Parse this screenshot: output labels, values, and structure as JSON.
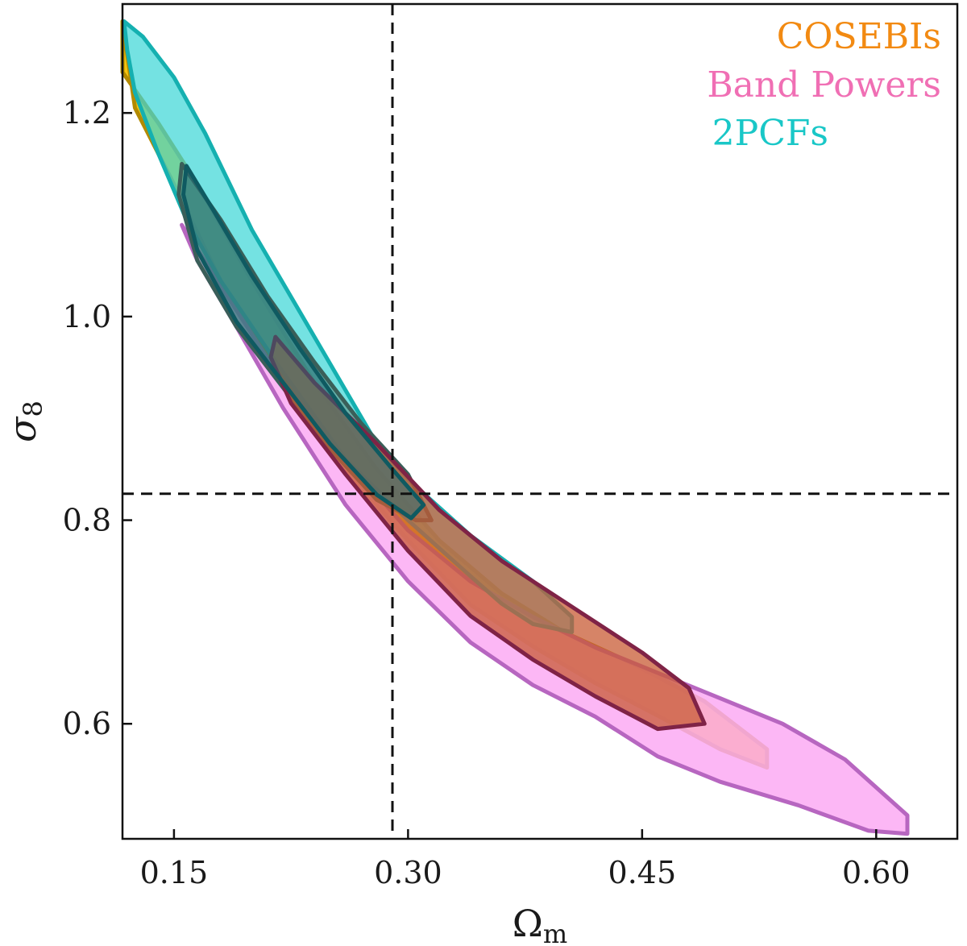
{
  "chart_data": {
    "type": "contour",
    "title": "",
    "xlabel_main": "Ω",
    "xlabel_sub": "m",
    "ylabel_main": "σ",
    "ylabel_sub": "8",
    "xlim": [
      0.117,
      0.652
    ],
    "ylim": [
      0.487,
      1.307
    ],
    "xticks": [
      0.15,
      0.3,
      0.45,
      0.6
    ],
    "xtick_labels": [
      "0.15",
      "0.30",
      "0.45",
      "0.60"
    ],
    "yticks": [
      0.6,
      0.8,
      1.0,
      1.2
    ],
    "ytick_labels": [
      "0.6",
      "0.8",
      "1.0",
      "1.2"
    ],
    "reference_lines": {
      "omega_m": 0.29,
      "sigma_8": 0.826
    },
    "legend": [
      {
        "label": "COSEBIs",
        "color": "#f28a12"
      },
      {
        "label": "Band Powers",
        "color": "#f06fb4"
      },
      {
        "label": "2PCFs",
        "color": "#19c7c7"
      }
    ],
    "series": [
      {
        "name": "COSEBIs",
        "fill": "#f5c100",
        "fill_opacity": 0.95,
        "stroke": "#b38a00",
        "fill_inner": "#5d8f84",
        "fill_inner_opacity": 0.6,
        "stroke_inner": "#3a5f59",
        "outer": [
          [
            0.117,
            1.24
          ],
          [
            0.14,
            1.19
          ],
          [
            0.165,
            1.13
          ],
          [
            0.2,
            1.035
          ],
          [
            0.24,
            0.935
          ],
          [
            0.28,
            0.85
          ],
          [
            0.32,
            0.78
          ],
          [
            0.36,
            0.728
          ],
          [
            0.4,
            0.69
          ],
          [
            0.44,
            0.662
          ],
          [
            0.49,
            0.622
          ],
          [
            0.53,
            0.575
          ],
          [
            0.53,
            0.557
          ],
          [
            0.5,
            0.575
          ],
          [
            0.46,
            0.608
          ],
          [
            0.42,
            0.64
          ],
          [
            0.38,
            0.676
          ],
          [
            0.34,
            0.717
          ],
          [
            0.3,
            0.78
          ],
          [
            0.26,
            0.85
          ],
          [
            0.22,
            0.94
          ],
          [
            0.18,
            1.035
          ],
          [
            0.15,
            1.13
          ],
          [
            0.125,
            1.205
          ],
          [
            0.117,
            1.29
          ]
        ],
        "inner": [
          [
            0.155,
            1.15
          ],
          [
            0.18,
            1.095
          ],
          [
            0.21,
            1.02
          ],
          [
            0.24,
            0.955
          ],
          [
            0.27,
            0.895
          ],
          [
            0.3,
            0.845
          ],
          [
            0.315,
            0.8
          ],
          [
            0.305,
            0.8
          ],
          [
            0.28,
            0.82
          ],
          [
            0.25,
            0.87
          ],
          [
            0.22,
            0.93
          ],
          [
            0.19,
            0.99
          ],
          [
            0.165,
            1.055
          ],
          [
            0.153,
            1.12
          ]
        ]
      },
      {
        "name": "Band Powers",
        "fill": "#fcaaf3",
        "fill_opacity": 0.85,
        "stroke": "#b766c0",
        "fill_inner": "#c85b34",
        "fill_inner_opacity": 0.75,
        "stroke_inner": "#7f2346",
        "outer": [
          [
            0.155,
            1.09
          ],
          [
            0.18,
            1.03
          ],
          [
            0.22,
            0.935
          ],
          [
            0.26,
            0.86
          ],
          [
            0.3,
            0.79
          ],
          [
            0.34,
            0.74
          ],
          [
            0.38,
            0.705
          ],
          [
            0.42,
            0.675
          ],
          [
            0.46,
            0.65
          ],
          [
            0.5,
            0.625
          ],
          [
            0.54,
            0.6
          ],
          [
            0.58,
            0.565
          ],
          [
            0.62,
            0.51
          ],
          [
            0.62,
            0.492
          ],
          [
            0.595,
            0.495
          ],
          [
            0.55,
            0.52
          ],
          [
            0.5,
            0.543
          ],
          [
            0.46,
            0.568
          ],
          [
            0.42,
            0.607
          ],
          [
            0.38,
            0.638
          ],
          [
            0.34,
            0.68
          ],
          [
            0.3,
            0.74
          ],
          [
            0.26,
            0.815
          ],
          [
            0.22,
            0.91
          ],
          [
            0.19,
            0.99
          ],
          [
            0.165,
            1.055
          ]
        ],
        "inner": [
          [
            0.215,
            0.98
          ],
          [
            0.24,
            0.935
          ],
          [
            0.28,
            0.875
          ],
          [
            0.32,
            0.81
          ],
          [
            0.36,
            0.76
          ],
          [
            0.41,
            0.71
          ],
          [
            0.45,
            0.67
          ],
          [
            0.48,
            0.635
          ],
          [
            0.49,
            0.6
          ],
          [
            0.46,
            0.595
          ],
          [
            0.42,
            0.627
          ],
          [
            0.38,
            0.663
          ],
          [
            0.34,
            0.706
          ],
          [
            0.3,
            0.77
          ],
          [
            0.26,
            0.845
          ],
          [
            0.225,
            0.915
          ],
          [
            0.212,
            0.96
          ]
        ]
      },
      {
        "name": "2PCFs",
        "fill": "#3fd7d7",
        "fill_opacity": 0.72,
        "stroke": "#15b0b0",
        "fill_inner": "#1d6e77",
        "fill_inner_opacity": 0.5,
        "stroke_inner": "#0f5a61",
        "outer": [
          [
            0.118,
            1.29
          ],
          [
            0.13,
            1.275
          ],
          [
            0.15,
            1.235
          ],
          [
            0.17,
            1.18
          ],
          [
            0.2,
            1.085
          ],
          [
            0.24,
            0.98
          ],
          [
            0.28,
            0.875
          ],
          [
            0.3,
            0.84
          ],
          [
            0.34,
            0.785
          ],
          [
            0.38,
            0.74
          ],
          [
            0.405,
            0.705
          ],
          [
            0.405,
            0.69
          ],
          [
            0.38,
            0.698
          ],
          [
            0.36,
            0.718
          ],
          [
            0.34,
            0.745
          ],
          [
            0.3,
            0.8
          ],
          [
            0.26,
            0.86
          ],
          [
            0.22,
            0.945
          ],
          [
            0.18,
            1.035
          ],
          [
            0.158,
            1.095
          ],
          [
            0.14,
            1.16
          ],
          [
            0.125,
            1.22
          ],
          [
            0.12,
            1.262
          ]
        ],
        "inner": [
          [
            0.158,
            1.148
          ],
          [
            0.175,
            1.105
          ],
          [
            0.2,
            1.04
          ],
          [
            0.23,
            0.97
          ],
          [
            0.26,
            0.905
          ],
          [
            0.29,
            0.85
          ],
          [
            0.31,
            0.815
          ],
          [
            0.302,
            0.802
          ],
          [
            0.28,
            0.825
          ],
          [
            0.25,
            0.875
          ],
          [
            0.22,
            0.935
          ],
          [
            0.19,
            0.995
          ],
          [
            0.165,
            1.065
          ],
          [
            0.156,
            1.12
          ]
        ]
      }
    ]
  }
}
